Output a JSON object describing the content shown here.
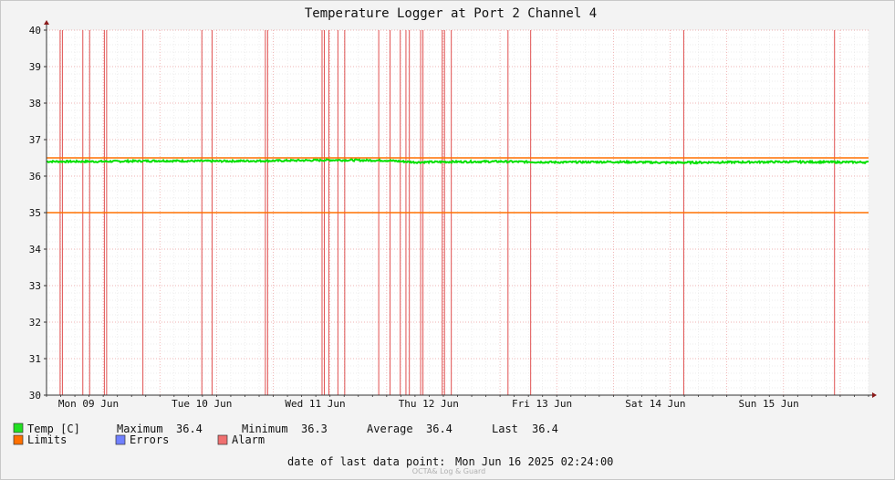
{
  "chart_data": {
    "type": "line",
    "title": "Temperature Logger at Port 2 Channel 4",
    "xlabel": "",
    "ylabel": "",
    "ylim": [
      30,
      40
    ],
    "xlim": [
      0,
      7.25
    ],
    "yticks": [
      "30",
      "31",
      "32",
      "33",
      "34",
      "35",
      "36",
      "37",
      "38",
      "39",
      "40"
    ],
    "xticks": [
      {
        "label": "Mon 09 Jun",
        "x": 0.37
      },
      {
        "label": "Tue 10 Jun",
        "x": 1.37
      },
      {
        "label": "Wed 11 Jun",
        "x": 2.37
      },
      {
        "label": "Thu 12 Jun",
        "x": 3.37
      },
      {
        "label": "Fri 13 Jun",
        "x": 4.37
      },
      {
        "label": "Sat 14 Jun",
        "x": 5.37
      },
      {
        "label": "Sun 15 Jun",
        "x": 6.37
      }
    ],
    "grid": true,
    "series": [
      {
        "name": "Temp [C]",
        "color": "#00e000",
        "x": [
          0,
          0.5,
          1,
          1.5,
          2,
          2.5,
          3,
          3.25,
          3.5,
          4,
          4.5,
          5,
          5.5,
          6,
          6.5,
          7.25
        ],
        "values": [
          36.4,
          36.4,
          36.42,
          36.41,
          36.42,
          36.44,
          36.43,
          36.38,
          36.39,
          36.4,
          36.38,
          36.39,
          36.37,
          36.38,
          36.39,
          36.38
        ]
      }
    ],
    "limits": {
      "name": "Limits",
      "color": "#ff7000",
      "upper": 36.5,
      "lower": 35.0
    },
    "alarms": {
      "name": "Alarm",
      "color": "#e05050",
      "x": [
        0.12,
        0.14,
        0.32,
        0.38,
        0.51,
        0.53,
        0.85,
        1.37,
        1.46,
        1.93,
        1.95,
        2.43,
        2.45,
        2.49,
        2.57,
        2.63,
        2.93,
        3.03,
        3.12,
        3.17,
        3.2,
        3.3,
        3.32,
        3.49,
        3.51,
        3.57,
        4.07,
        4.27,
        5.62,
        6.95
      ]
    },
    "stats": {
      "maximum_label": "Maximum",
      "maximum": "36.4",
      "minimum_label": "Minimum",
      "minimum": "36.3",
      "average_label": "Average",
      "average": "36.4",
      "last_label": "Last",
      "last": "36.4"
    },
    "legend": [
      {
        "label": "Temp [C]",
        "color": "#22e022"
      },
      {
        "label": "Limits",
        "color": "#ff7000"
      },
      {
        "label": "Errors",
        "color": "#7080ff"
      },
      {
        "label": "Alarm",
        "color": "#f07070"
      }
    ],
    "legend_position": "bottom-left",
    "footer": {
      "last_point_label": "date of last data point:",
      "last_point_value": "Mon Jun 16 2025 02:24:00",
      "watermark": "OCTA& Log & Guard"
    }
  }
}
